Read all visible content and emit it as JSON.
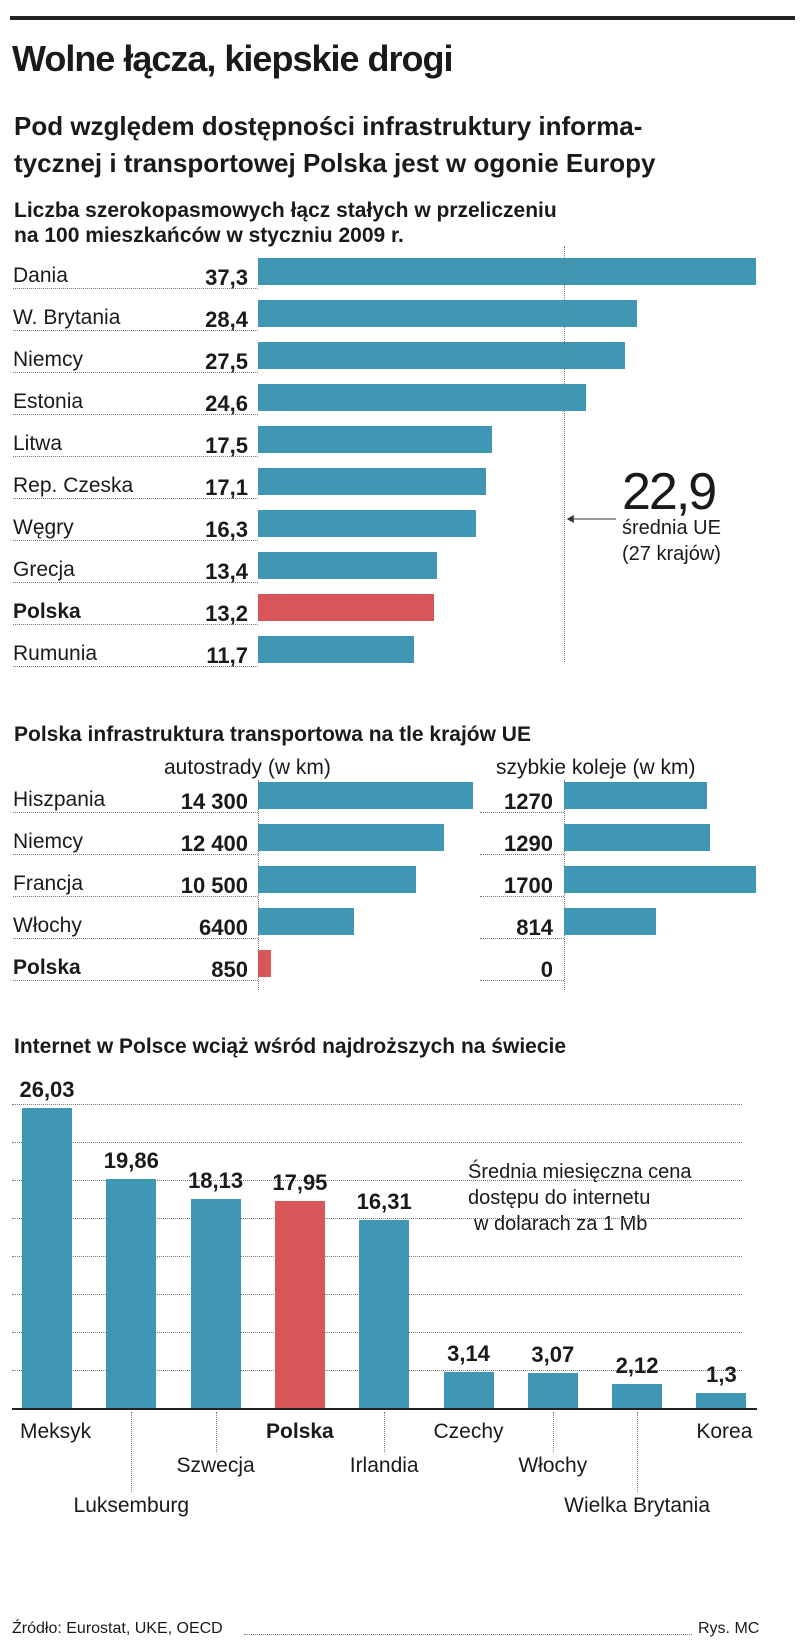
{
  "title": "Wolne łącza, kiepskie drogi",
  "subtitle_line1": "Pod względem dostępności infrastruktury informa-",
  "subtitle_line2": "tycznej i transportowej Polska jest w ogonie Europy",
  "colors": {
    "bar": "#3f97b3",
    "highlight": "#d8555a",
    "text": "#1a1a1a"
  },
  "source": "Źródło: Eurostat, UKE, OECD",
  "credit": "Rys. MC",
  "chart_data": [
    {
      "type": "bar",
      "orientation": "horizontal",
      "title_line1": "Liczba szerokopasmowych łącz stałych w przeliczeniu",
      "title_line2": "na 100 mieszkańców w styczniu 2009 r.",
      "categories": [
        "Dania",
        "W. Brytania",
        "Niemcy",
        "Estonia",
        "Litwa",
        "Rep. Czeska",
        "Węgry",
        "Grecja",
        "Polska",
        "Rumunia"
      ],
      "labels": [
        "37,3",
        "28,4",
        "27,5",
        "24,6",
        "17,5",
        "17,1",
        "16,3",
        "13,4",
        "13,2",
        "11,7"
      ],
      "values": [
        37.3,
        28.4,
        27.5,
        24.6,
        17.5,
        17.1,
        16.3,
        13.4,
        13.2,
        11.7
      ],
      "highlight": "Polska",
      "xlim": [
        0,
        37.3
      ],
      "reference": {
        "value": 22.9,
        "label": "22,9",
        "note_line1": "średnia UE",
        "note_line2": "(27 krajów)"
      }
    },
    {
      "type": "bar",
      "orientation": "horizontal",
      "title": "Polska infrastruktura transportowa na tle krajów UE",
      "categories": [
        "Hiszpania",
        "Niemcy",
        "Francja",
        "Włochy",
        "Polska"
      ],
      "highlight": "Polska",
      "series": [
        {
          "name": "autostrady (w km)",
          "labels": [
            "14 300",
            "12 400",
            "10 500",
            "6400",
            "850"
          ],
          "values": [
            14300,
            12400,
            10500,
            6400,
            850
          ],
          "xlim": [
            0,
            14300
          ]
        },
        {
          "name": "szybkie koleje (w km)",
          "labels": [
            "1270",
            "1290",
            "1700",
            "814",
            "0"
          ],
          "values": [
            1270,
            1290,
            1700,
            814,
            0
          ],
          "xlim": [
            0,
            1700
          ]
        }
      ]
    },
    {
      "type": "bar",
      "orientation": "vertical",
      "title": "Internet w Polsce wciąż wśród najdroższych na świecie",
      "categories": [
        "Meksyk",
        "Luksemburg",
        "Szwecja",
        "Polska",
        "Irlandia",
        "Czechy",
        "Włochy",
        "Wielka Brytania",
        "Korea"
      ],
      "labels": [
        "26,03",
        "19,86",
        "18,13",
        "17,95",
        "16,31",
        "3,14",
        "3,07",
        "2,12",
        "1,3"
      ],
      "values": [
        26.03,
        19.86,
        18.13,
        17.95,
        16.31,
        3.14,
        3.07,
        2.12,
        1.3
      ],
      "highlight": "Polska",
      "ylim": [
        0,
        26.03
      ],
      "annotation_line1": "Średnia miesięczna cena",
      "annotation_line2": "dostępu do internetu",
      "annotation_line3": "w dolarach za 1 Mb"
    }
  ]
}
